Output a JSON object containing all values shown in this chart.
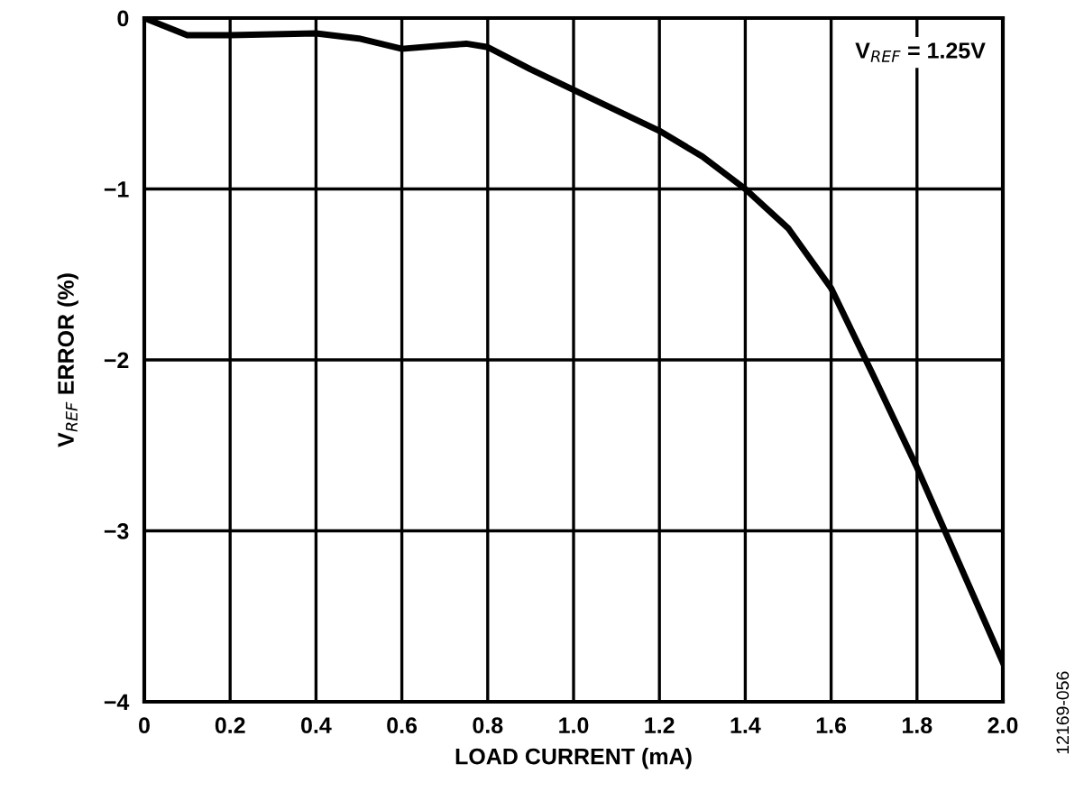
{
  "chart_data": {
    "type": "line",
    "xlabel": "LOAD CURRENT (mA)",
    "ylabel": "V$_{REF}$ ERROR (%)",
    "x": [
      0,
      0.05,
      0.1,
      0.2,
      0.3,
      0.4,
      0.5,
      0.6,
      0.7,
      0.75,
      0.8,
      0.9,
      1.0,
      1.1,
      1.2,
      1.3,
      1.4,
      1.5,
      1.6,
      1.7,
      1.8,
      1.9,
      2.0
    ],
    "series": [
      {
        "color": "#000000",
        "values": [
          0,
          -0.05,
          -0.1,
          -0.1,
          -0.095,
          -0.09,
          -0.12,
          -0.18,
          -0.16,
          -0.15,
          -0.17,
          -0.3,
          -0.42,
          -0.54,
          -0.66,
          -0.81,
          -1.0,
          -1.23,
          -1.58,
          -2.1,
          -2.63,
          -3.2,
          -3.77
        ]
      }
    ],
    "xlim": [
      0,
      2.0
    ],
    "ylim": [
      -4,
      0
    ],
    "xticks": [
      {
        "value": 0,
        "label": "0"
      },
      0.2,
      0.4,
      0.6,
      0.8,
      {
        "value": 1.0,
        "label": "1.0"
      },
      1.2,
      1.4,
      1.6,
      1.8,
      {
        "value": 2.0,
        "label": "2.0"
      }
    ],
    "yticks": [
      {
        "value": -4,
        "label": "−4"
      },
      {
        "value": -3,
        "label": "−3"
      },
      {
        "value": -2,
        "label": "−2"
      },
      {
        "value": -1,
        "label": "−1"
      },
      0
    ],
    "grid": true,
    "marker": "none",
    "line_style": "solid",
    "annotations": [
      "V$_{REF}$ = 1.25V",
      "12169-056"
    ]
  }
}
